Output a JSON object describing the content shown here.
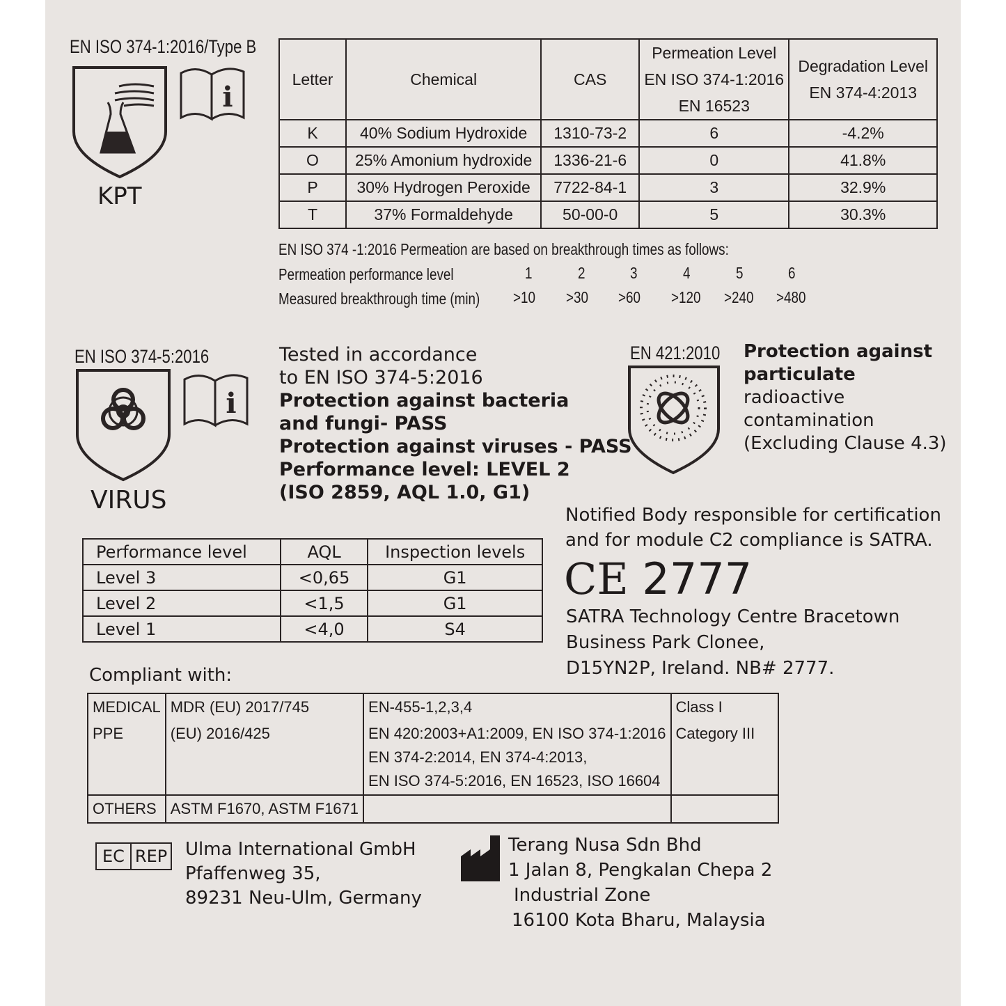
{
  "type_b": {
    "label": "EN ISO 374-1:2016/Type B",
    "code": "KPT"
  },
  "chem_table": {
    "headers": [
      "Letter",
      "Chemical",
      "CAS",
      "Permeation Level\nEN ISO 374-1:2016\nEN 16523",
      "Degradation Level\nEN 374-4:2013"
    ],
    "rows": [
      [
        "K",
        "40% Sodium Hydroxide",
        "1310-73-2",
        "6",
        "-4.2%"
      ],
      [
        "O",
        "25% Amonium hydroxide",
        "1336-21-6",
        "0",
        "41.8%"
      ],
      [
        "P",
        "30% Hydrogen Peroxide",
        "7722-84-1",
        "3",
        "32.9%"
      ],
      [
        "T",
        "37% Formaldehyde",
        "50-00-0",
        "5",
        "30.3%"
      ]
    ]
  },
  "permeation": {
    "note": "EN ISO 374 -1:2016 Permeation are based on breakthrough times as follows:",
    "level_label": "Permeation performance level",
    "levels": [
      "1",
      "2",
      "3",
      "4",
      "5",
      "6"
    ],
    "time_label": "Measured breakthrough time (min)",
    "times": [
      ">10",
      ">30",
      ">60",
      ">120",
      ">240",
      ">480"
    ]
  },
  "virus": {
    "label": "EN ISO 374-5:2016",
    "code": "VIRUS",
    "lines": [
      "Tested in accordance",
      "to EN ISO 374-5:2016"
    ],
    "bold_lines": [
      "Protection against bacteria",
      "and fungi- PASS",
      "Protection against viruses - PASS",
      "Performance level: LEVEL 2",
      "(ISO 2859, AQL 1.0, G1)"
    ]
  },
  "radio": {
    "label": "EN 421:2010",
    "bold_lines": [
      "Protection against",
      "particulate"
    ],
    "lines": [
      "radioactive",
      "contamination",
      "(Excluding Clause 4.3)"
    ]
  },
  "aql_table": {
    "headers": [
      "Performance level",
      "AQL",
      "Inspection levels"
    ],
    "rows": [
      [
        "Level 3",
        "<0,65",
        "G1"
      ],
      [
        "Level 2",
        "<1,5",
        "G1"
      ],
      [
        "Level 1",
        "<4,0",
        "S4"
      ]
    ]
  },
  "notified": {
    "lines": [
      "Notified Body responsible for certification",
      "and for module C2 compliance is SATRA."
    ],
    "ce": "CE",
    "number": "2777",
    "address": [
      "SATRA Technology Centre Bracetown",
      "Business Park Clonee,",
      "D15YN2P, Ireland. NB# 2777."
    ]
  },
  "compliant": {
    "title": "Compliant with:",
    "rows": [
      [
        "MEDICAL",
        "MDR (EU) 2017/745",
        "EN-455-1,2,3,4",
        "Class I"
      ],
      [
        "PPE",
        "(EU) 2016/425",
        "EN 420:2003+A1:2009, EN ISO 374-1:2016\nEN 374-2:2014, EN 374-4:2013,\nEN ISO 374-5:2016, EN 16523, ISO 16604",
        "Category III"
      ],
      [
        "OTHERS",
        "ASTM F1670, ASTM F1671",
        "",
        ""
      ]
    ]
  },
  "ec_rep": {
    "ec": "EC",
    "rep": "REP",
    "lines": [
      "Ulma International GmbH",
      "Pfaffenweg 35,",
      "89231 Neu-Ulm, Germany"
    ]
  },
  "manufacturer": {
    "lines": [
      "Terang Nusa Sdn Bhd",
      "1 Jalan 8, Pengkalan Chepa 2",
      "Industrial Zone",
      "16100 Kota Bharu, Malaysia"
    ]
  }
}
